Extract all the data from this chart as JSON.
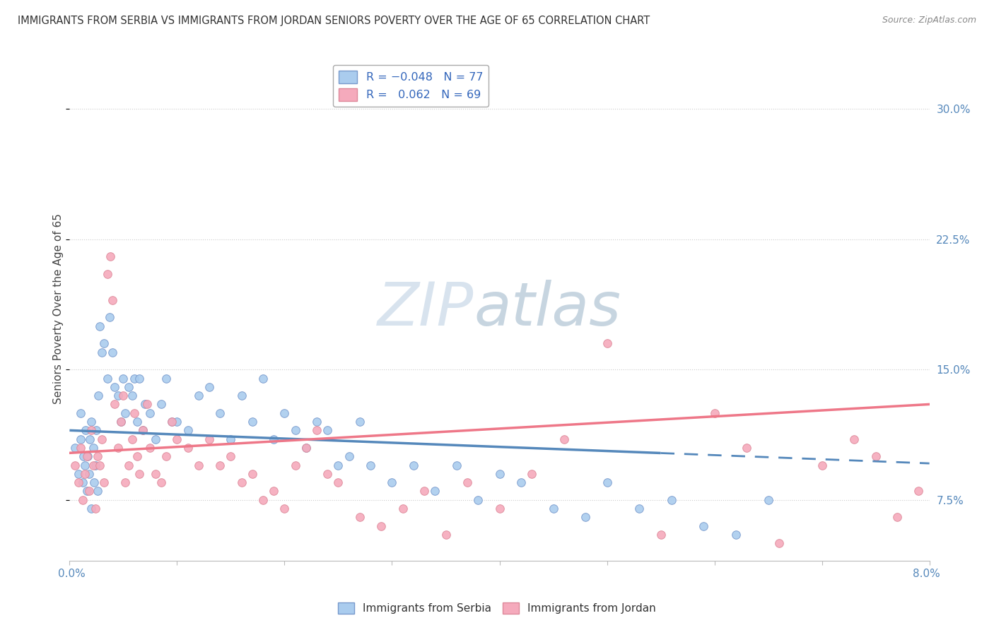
{
  "title": "IMMIGRANTS FROM SERBIA VS IMMIGRANTS FROM JORDAN SENIORS POVERTY OVER THE AGE OF 65 CORRELATION CHART",
  "source": "Source: ZipAtlas.com",
  "ylabel_label": "Seniors Poverty Over the Age of 65",
  "serbia_color_face": "#aaccee",
  "serbia_color_edge": "#7799cc",
  "jordan_color_face": "#f5aabc",
  "jordan_color_edge": "#dd8899",
  "serbia_line_color": "#5588bb",
  "jordan_line_color": "#ee7788",
  "yticks": [
    7.5,
    15.0,
    22.5,
    30.0
  ],
  "ytick_labels": [
    "7.5%",
    "15.0%",
    "22.5%",
    "30.0%"
  ],
  "xlim": [
    0.0,
    8.0
  ],
  "ylim": [
    4.0,
    33.0
  ],
  "serbia_line_x": [
    0.0,
    8.0
  ],
  "serbia_line_y": [
    11.5,
    9.6
  ],
  "jordan_line_x": [
    0.0,
    8.0
  ],
  "jordan_line_y": [
    10.2,
    13.0
  ],
  "serbia_x": [
    0.05,
    0.08,
    0.1,
    0.1,
    0.12,
    0.13,
    0.14,
    0.15,
    0.16,
    0.17,
    0.18,
    0.19,
    0.2,
    0.2,
    0.22,
    0.23,
    0.24,
    0.25,
    0.26,
    0.27,
    0.28,
    0.3,
    0.32,
    0.35,
    0.37,
    0.4,
    0.42,
    0.45,
    0.48,
    0.5,
    0.52,
    0.55,
    0.58,
    0.6,
    0.63,
    0.65,
    0.68,
    0.7,
    0.75,
    0.8,
    0.85,
    0.9,
    0.95,
    1.0,
    1.1,
    1.2,
    1.3,
    1.4,
    1.5,
    1.6,
    1.7,
    1.8,
    1.9,
    2.0,
    2.1,
    2.2,
    2.3,
    2.4,
    2.5,
    2.6,
    2.7,
    2.8,
    3.0,
    3.2,
    3.4,
    3.6,
    3.8,
    4.0,
    4.2,
    4.5,
    4.8,
    5.0,
    5.3,
    5.6,
    5.9,
    6.2,
    6.5
  ],
  "serbia_y": [
    10.5,
    9.0,
    11.0,
    12.5,
    8.5,
    10.0,
    9.5,
    11.5,
    8.0,
    10.0,
    9.0,
    11.0,
    7.0,
    12.0,
    10.5,
    8.5,
    9.5,
    11.5,
    8.0,
    13.5,
    17.5,
    16.0,
    16.5,
    14.5,
    18.0,
    16.0,
    14.0,
    13.5,
    12.0,
    14.5,
    12.5,
    14.0,
    13.5,
    14.5,
    12.0,
    14.5,
    11.5,
    13.0,
    12.5,
    11.0,
    13.0,
    14.5,
    12.0,
    12.0,
    11.5,
    13.5,
    14.0,
    12.5,
    11.0,
    13.5,
    12.0,
    14.5,
    11.0,
    12.5,
    11.5,
    10.5,
    12.0,
    11.5,
    9.5,
    10.0,
    12.0,
    9.5,
    8.5,
    9.5,
    8.0,
    9.5,
    7.5,
    9.0,
    8.5,
    7.0,
    6.5,
    8.5,
    7.0,
    7.5,
    6.0,
    5.5,
    7.5
  ],
  "jordan_x": [
    0.05,
    0.08,
    0.1,
    0.12,
    0.14,
    0.16,
    0.18,
    0.2,
    0.22,
    0.24,
    0.26,
    0.28,
    0.3,
    0.32,
    0.35,
    0.38,
    0.4,
    0.42,
    0.45,
    0.48,
    0.5,
    0.52,
    0.55,
    0.58,
    0.6,
    0.63,
    0.65,
    0.68,
    0.72,
    0.75,
    0.8,
    0.85,
    0.9,
    0.95,
    1.0,
    1.1,
    1.2,
    1.3,
    1.4,
    1.5,
    1.6,
    1.7,
    1.8,
    1.9,
    2.0,
    2.1,
    2.2,
    2.3,
    2.4,
    2.5,
    2.7,
    2.9,
    3.1,
    3.3,
    3.5,
    3.7,
    4.0,
    4.3,
    4.6,
    5.0,
    5.5,
    6.0,
    6.3,
    6.6,
    7.0,
    7.3,
    7.5,
    7.7,
    7.9
  ],
  "jordan_y": [
    9.5,
    8.5,
    10.5,
    7.5,
    9.0,
    10.0,
    8.0,
    11.5,
    9.5,
    7.0,
    10.0,
    9.5,
    11.0,
    8.5,
    20.5,
    21.5,
    19.0,
    13.0,
    10.5,
    12.0,
    13.5,
    8.5,
    9.5,
    11.0,
    12.5,
    10.0,
    9.0,
    11.5,
    13.0,
    10.5,
    9.0,
    8.5,
    10.0,
    12.0,
    11.0,
    10.5,
    9.5,
    11.0,
    9.5,
    10.0,
    8.5,
    9.0,
    7.5,
    8.0,
    7.0,
    9.5,
    10.5,
    11.5,
    9.0,
    8.5,
    6.5,
    6.0,
    7.0,
    8.0,
    5.5,
    8.5,
    7.0,
    9.0,
    11.0,
    16.5,
    5.5,
    12.5,
    10.5,
    5.0,
    9.5,
    11.0,
    10.0,
    6.5,
    8.0
  ]
}
